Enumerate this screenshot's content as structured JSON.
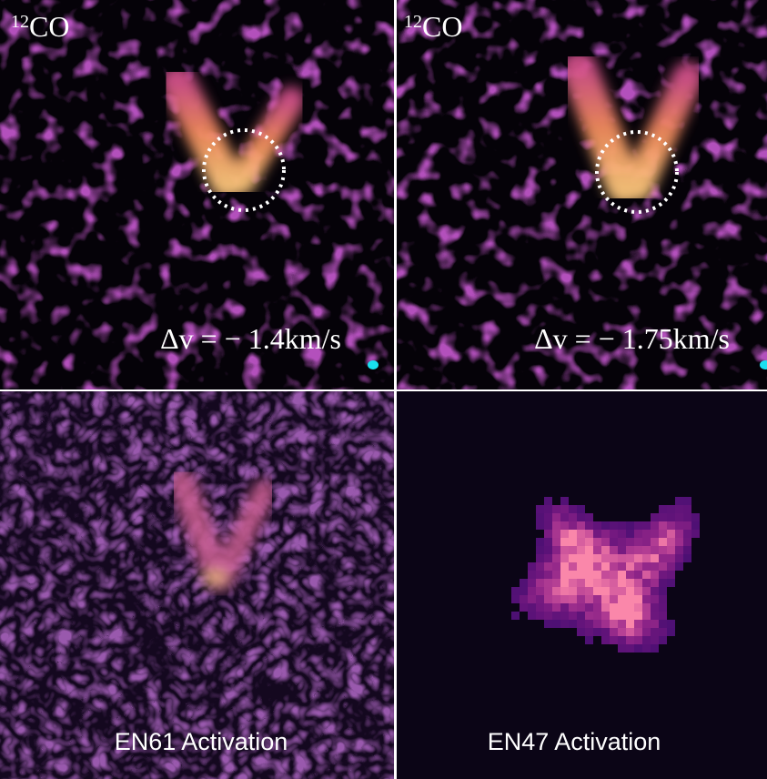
{
  "panels": [
    {
      "species": {
        "mass": "12",
        "name": "CO"
      },
      "velocity": "Δv = − 1.4km/s"
    },
    {
      "species": {
        "mass": "12",
        "name": "CO"
      },
      "velocity": "Δv = − 1.75km/s"
    },
    {
      "caption": "EN61 Activation"
    },
    {
      "caption": "EN47 Activation"
    }
  ]
}
